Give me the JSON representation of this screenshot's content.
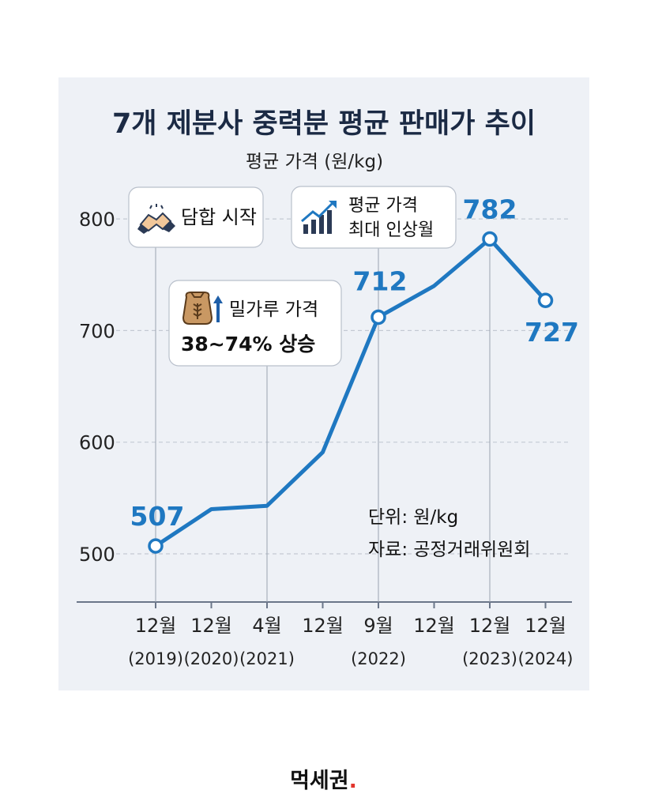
{
  "chart_data": {
    "type": "line",
    "title": "7개 제분사 중력분 평균 판매가 추이",
    "ylabel": "평균 가격 (원/kg)",
    "xlabel": "",
    "categories": [
      {
        "month": "12월",
        "year": "(2019)"
      },
      {
        "month": "12월",
        "year": "(2020)"
      },
      {
        "month": "4월",
        "year": "(2021)"
      },
      {
        "month": "12월",
        "year": ""
      },
      {
        "month": "9월",
        "year": "(2022)"
      },
      {
        "month": "12월",
        "year": ""
      },
      {
        "month": "12월",
        "year": "(2023)"
      },
      {
        "month": "12월",
        "year": "(2024)"
      }
    ],
    "series": [
      {
        "values": [
          507,
          540,
          543,
          591,
          712,
          740,
          782,
          727
        ]
      }
    ],
    "data_labels": [
      {
        "index": 0,
        "text": "507"
      },
      {
        "index": 4,
        "text": "712"
      },
      {
        "index": 6,
        "text": "782"
      },
      {
        "index": 7,
        "text": "727"
      }
    ],
    "ylim": [
      480,
      820
    ],
    "yticks": [
      "500",
      "600",
      "700",
      "800"
    ],
    "ytick_values": [
      500,
      600,
      700,
      800
    ],
    "grid": "horizontal dashed",
    "line_color": "#1f78c1",
    "annotations": [
      {
        "name": "collusion-callout",
        "icon": "handshake-icon",
        "lines": [
          "담합 시작"
        ]
      },
      {
        "name": "wheat-callout",
        "icon": "wheat-sack-up-icon",
        "lines": [
          "밀가루 가격",
          "38~74% 상승"
        ]
      },
      {
        "name": "max-increase-callout",
        "icon": "rising-bar-chart-icon",
        "lines": [
          "평균 가격",
          "최대 인상월"
        ]
      }
    ],
    "notes": [
      "단위: 원/kg",
      "자료: 공정거래위원회"
    ]
  },
  "brand": {
    "name": "먹세권",
    "dot": "."
  }
}
